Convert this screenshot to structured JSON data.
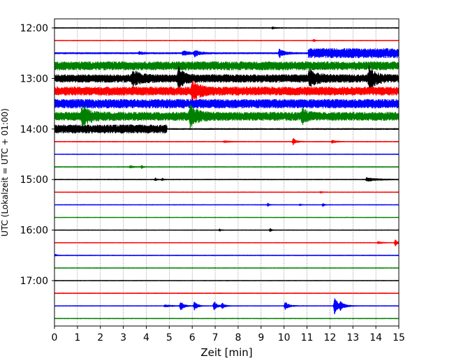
{
  "chart_data": {
    "type": "line",
    "title": "",
    "xlabel": "Zeit  [min]",
    "ylabel": "UTC (Lokalzeit = UTC + 01:00)",
    "xlim": [
      0,
      15
    ],
    "x_ticks": [
      0,
      1,
      2,
      3,
      4,
      5,
      6,
      7,
      8,
      9,
      10,
      11,
      12,
      13,
      14,
      15
    ],
    "y_tick_labels": [
      "12:00",
      "13:00",
      "14:00",
      "15:00",
      "16:00",
      "17:00"
    ],
    "grid": "vertical dotted",
    "color_cycle": [
      "#000000",
      "#ff0000",
      "#0000ff",
      "#008000"
    ],
    "traces": [
      {
        "start": "12:00",
        "color": "#000000",
        "level": 0.06,
        "events": [
          [
            9.5,
            0.15,
            0.12
          ]
        ]
      },
      {
        "start": "12:15",
        "color": "#ff0000",
        "level": 0.05,
        "events": [
          [
            11.3,
            0.2,
            0.06
          ]
        ]
      },
      {
        "start": "12:30",
        "color": "#0000ff",
        "level": 0.12,
        "events": [
          [
            3.7,
            0.25,
            0.18
          ],
          [
            5.6,
            0.4,
            0.25
          ],
          [
            6.1,
            0.6,
            0.2
          ],
          [
            9.8,
            0.75,
            0.2
          ]
        ],
        "segments": [
          [
            11.05,
            15,
            0.85
          ]
        ]
      },
      {
        "start": "12:45",
        "color": "#008000",
        "level": 0.75,
        "events": []
      },
      {
        "start": "13:00",
        "color": "#000000",
        "level": 0.7,
        "events": [
          [
            3.4,
            1.1,
            0.3
          ],
          [
            5.4,
            1.6,
            0.2
          ],
          [
            11.1,
            1.1,
            0.3
          ],
          [
            13.7,
            1.7,
            0.25
          ]
        ]
      },
      {
        "start": "13:15",
        "color": "#ff0000",
        "level": 0.75,
        "events": [
          [
            6.0,
            1.7,
            0.25
          ]
        ]
      },
      {
        "start": "13:30",
        "color": "#0000ff",
        "level": 0.8,
        "events": []
      },
      {
        "start": "13:45",
        "color": "#008000",
        "level": 0.75,
        "events": [
          [
            1.2,
            1.4,
            0.3
          ],
          [
            5.9,
            1.5,
            0.3
          ],
          [
            10.8,
            0.9,
            0.2
          ]
        ]
      },
      {
        "start": "14:00",
        "color": "#000000",
        "level": 0.1,
        "events": [],
        "segments": [
          [
            0,
            4.9,
            0.75
          ]
        ]
      },
      {
        "start": "14:15",
        "color": "#ff0000",
        "level": 0.06,
        "events": [
          [
            7.4,
            0.15,
            0.2
          ],
          [
            10.4,
            0.55,
            0.12
          ],
          [
            12.1,
            0.25,
            0.15
          ]
        ]
      },
      {
        "start": "14:30",
        "color": "#0000ff",
        "level": 0.05,
        "events": []
      },
      {
        "start": "14:45",
        "color": "#008000",
        "level": 0.06,
        "events": [
          [
            3.3,
            0.2,
            0.15
          ],
          [
            3.8,
            0.25,
            0.06
          ]
        ]
      },
      {
        "start": "15:00",
        "color": "#000000",
        "level": 0.06,
        "events": [
          [
            4.4,
            0.3,
            0.05
          ],
          [
            4.7,
            0.2,
            0.05
          ],
          [
            13.6,
            0.35,
            0.4
          ]
        ]
      },
      {
        "start": "15:15",
        "color": "#ff0000",
        "level": 0.05,
        "events": [
          [
            11.6,
            0.15,
            0.05
          ]
        ]
      },
      {
        "start": "15:30",
        "color": "#0000ff",
        "level": 0.05,
        "events": [
          [
            9.3,
            0.3,
            0.05
          ],
          [
            10.7,
            0.15,
            0.05
          ],
          [
            11.7,
            0.3,
            0.05
          ]
        ]
      },
      {
        "start": "15:45",
        "color": "#008000",
        "level": 0.04,
        "events": []
      },
      {
        "start": "16:00",
        "color": "#000000",
        "level": 0.05,
        "events": [
          [
            7.2,
            0.2,
            0.05
          ],
          [
            9.4,
            0.3,
            0.05
          ]
        ]
      },
      {
        "start": "16:15",
        "color": "#ff0000",
        "level": 0.05,
        "events": [
          [
            14.1,
            0.2,
            0.15
          ],
          [
            14.85,
            0.6,
            0.08
          ]
        ]
      },
      {
        "start": "16:30",
        "color": "#0000ff",
        "level": 0.06,
        "events": [
          [
            0.05,
            0.15,
            0.05
          ]
        ]
      },
      {
        "start": "16:45",
        "color": "#008000",
        "level": 0.05,
        "events": []
      },
      {
        "start": "17:00",
        "color": "#000000",
        "level": 0.05,
        "events": []
      },
      {
        "start": "17:15",
        "color": "#ff0000",
        "level": 0.06,
        "events": []
      },
      {
        "start": "17:30",
        "color": "#0000ff",
        "level": 0.05,
        "events": [
          [
            4.8,
            0.2,
            0.3
          ],
          [
            5.5,
            0.9,
            0.12
          ],
          [
            6.1,
            0.8,
            0.12
          ],
          [
            6.95,
            0.9,
            0.12
          ],
          [
            7.3,
            0.5,
            0.12
          ],
          [
            10.05,
            0.75,
            0.15
          ],
          [
            12.2,
            1.6,
            0.15
          ],
          [
            12.45,
            0.5,
            0.2
          ]
        ]
      },
      {
        "start": "17:45",
        "color": "#008000",
        "level": 0.05,
        "events": []
      }
    ]
  }
}
